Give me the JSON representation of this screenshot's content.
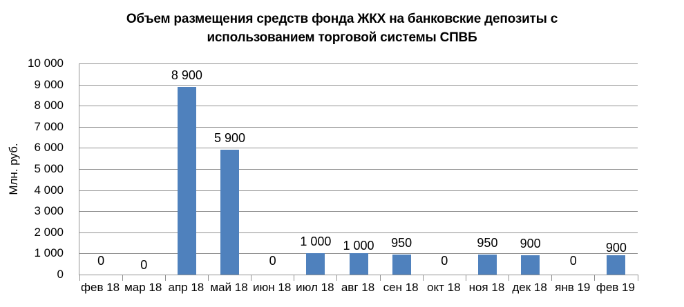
{
  "chart_data": {
    "type": "bar",
    "title": "Объем размещения средств фонда ЖКХ на банковские депозиты с использованием торговой системы СПВБ",
    "title_lines": [
      "Объем размещения средств фонда ЖКХ на банковские депозиты с",
      "использованием торговой системы СПВБ"
    ],
    "ylabel": "Млн. руб.",
    "xlabel": "",
    "categories": [
      "фев 18",
      "мар 18",
      "апр 18",
      "май 18",
      "июн 18",
      "июл 18",
      "авг 18",
      "сен 18",
      "окт 18",
      "ноя 18",
      "дек 18",
      "янв 19",
      "фев 19"
    ],
    "values": [
      0,
      0,
      8900,
      5900,
      0,
      1000,
      1000,
      950,
      0,
      950,
      900,
      0,
      900
    ],
    "value_labels": [
      "0",
      "0",
      "8 900",
      "5 900",
      "0",
      "1 000",
      "1 000",
      "950",
      "0",
      "950",
      "900",
      "0",
      "900"
    ],
    "ylim": [
      0,
      10000
    ],
    "y_tick_step": 1000,
    "y_ticks": [
      "0",
      "1 000",
      "2 000",
      "3 000",
      "4 000",
      "5 000",
      "6 000",
      "7 000",
      "8 000",
      "9 000",
      "10 000"
    ],
    "grid": "horizontal",
    "legend": "none",
    "bar_color": "#4F81BD",
    "grid_color": "#909090",
    "text_color": "#000000"
  }
}
